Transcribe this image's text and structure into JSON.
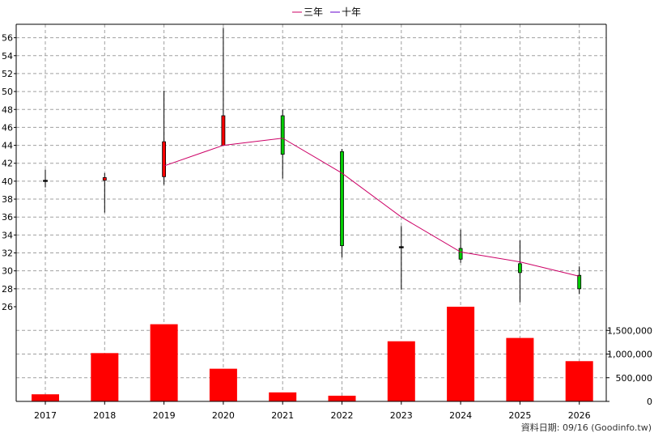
{
  "chart_data": {
    "type": "candlestick",
    "years": [
      "2017",
      "2018",
      "2019",
      "2020",
      "2021",
      "2022",
      "2023",
      "2024",
      "2025",
      "2026"
    ],
    "price_axis": {
      "ticks": [
        26,
        28,
        30,
        32,
        34,
        36,
        38,
        40,
        42,
        44,
        46,
        48,
        50,
        52,
        54,
        56
      ],
      "range": [
        26,
        57.5
      ]
    },
    "volume_axis": {
      "ticks": [
        0,
        500000,
        1000000,
        1500000
      ],
      "tick_labels": [
        "0",
        "500,000",
        "1,000,000",
        "1,500,000"
      ],
      "range": [
        0,
        2000000
      ]
    },
    "candles": [
      {
        "year": "2017",
        "open": 40.0,
        "close": 40.1,
        "high": 41.3,
        "low": 39.3,
        "color": "#000000"
      },
      {
        "year": "2018",
        "open": 40.1,
        "close": 40.4,
        "high": 40.9,
        "low": 36.5,
        "color": "#ff0000"
      },
      {
        "year": "2019",
        "open": 40.5,
        "close": 44.4,
        "high": 50.1,
        "low": 39.6,
        "color": "#ff0000"
      },
      {
        "year": "2020",
        "open": 44.0,
        "close": 47.3,
        "high": 57.1,
        "low": 44.0,
        "color": "#ff0000"
      },
      {
        "year": "2021",
        "open": 47.3,
        "close": 43.0,
        "high": 48.0,
        "low": 40.3,
        "color": "#00cc00"
      },
      {
        "year": "2022",
        "open": 43.3,
        "close": 32.8,
        "high": 43.6,
        "low": 31.5,
        "color": "#00cc00"
      },
      {
        "year": "2023",
        "open": 32.7,
        "close": 32.7,
        "high": 35.0,
        "low": 27.9,
        "color": "#000000"
      },
      {
        "year": "2024",
        "open": 32.5,
        "close": 31.3,
        "high": 34.6,
        "low": 30.9,
        "color": "#00cc00"
      },
      {
        "year": "2025",
        "open": 30.8,
        "close": 29.8,
        "high": 33.4,
        "low": 26.5,
        "color": "#00cc00"
      },
      {
        "year": "2026",
        "open": 29.5,
        "close": 28.0,
        "high": 30.5,
        "low": 27.4,
        "color": "#00cc00"
      }
    ],
    "series": [
      {
        "name": "三年",
        "color": "#cc0066",
        "x": [
          "2019",
          "2020",
          "2021",
          "2022",
          "2023",
          "2024",
          "2025",
          "2026"
        ],
        "values": [
          41.7,
          44.0,
          44.8,
          40.9,
          36.0,
          32.1,
          31.0,
          29.4
        ]
      },
      {
        "name": "十年",
        "color": "#6600cc",
        "x": [],
        "values": []
      }
    ],
    "volume": {
      "color": "#ff0000",
      "values": [
        150000,
        1020000,
        1630000,
        690000,
        190000,
        120000,
        1270000,
        2000000,
        1340000,
        850000
      ]
    },
    "grid": true
  },
  "legend": {
    "items": [
      {
        "label": "三年",
        "color": "#cc0066"
      },
      {
        "label": "十年",
        "color": "#6600cc"
      }
    ]
  },
  "footer": {
    "source": "資料日期: 09/16  (Goodinfo.tw)"
  }
}
